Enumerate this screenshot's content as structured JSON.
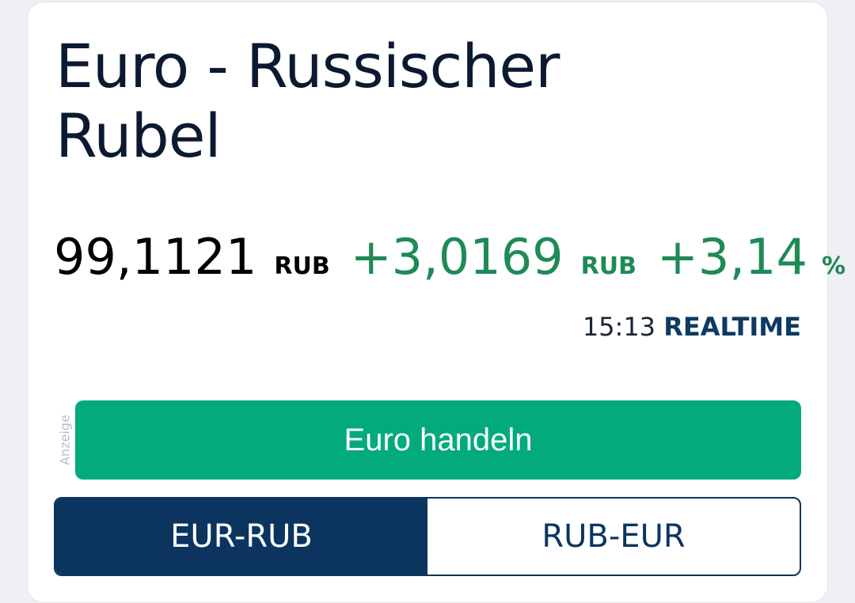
{
  "title_line1": "Euro - Russischer",
  "title_line2": "Rubel",
  "quote": {
    "price": "99,1121",
    "price_unit": "RUB",
    "change": "+3,0169",
    "change_unit": "RUB",
    "change_pct": "+3,14",
    "pct_unit": "%"
  },
  "time": "15:13",
  "realtime": "REALTIME",
  "ad_label": "Anzeige",
  "trade_button": "Euro handeln",
  "toggle": [
    {
      "label": "EUR-RUB",
      "active": true
    },
    {
      "label": "RUB-EUR",
      "active": false
    }
  ],
  "colors": {
    "positive": "#1e8a55",
    "trade": "#02aa7d",
    "navy": "#0b355f"
  }
}
